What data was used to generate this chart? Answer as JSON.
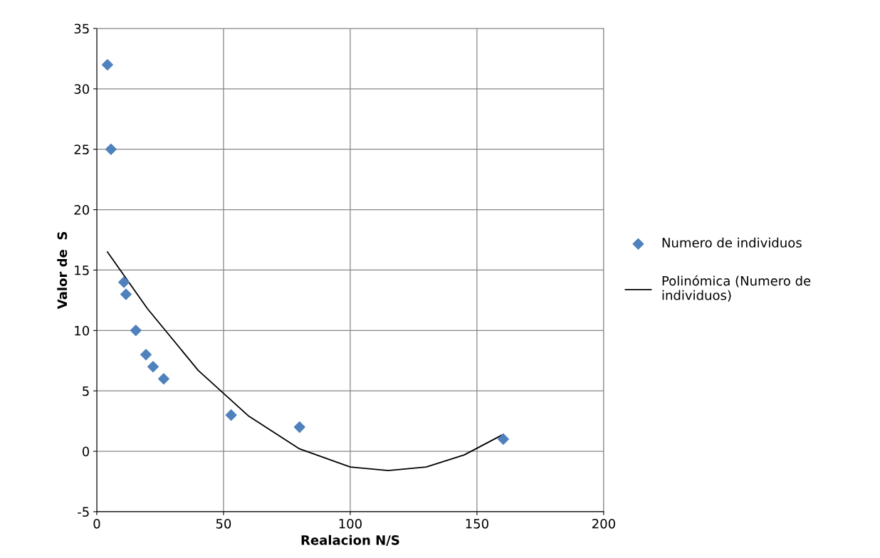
{
  "chart_data": {
    "type": "scatter",
    "xlabel": "Realacion N/S",
    "ylabel": "Valor de  S",
    "xlim": [
      0,
      200
    ],
    "xticks": [
      0,
      50,
      100,
      150,
      200
    ],
    "ylim": [
      -5,
      35
    ],
    "yticks": [
      -5,
      0,
      5,
      10,
      15,
      20,
      25,
      30,
      35
    ],
    "grid": true,
    "legend": "right",
    "series": [
      {
        "name": "Numero de individuos",
        "marker": "diamond",
        "color": "#4f81bd",
        "x": [
          4.2,
          5.6,
          10.7,
          11.5,
          15.4,
          19.4,
          22.2,
          26.4,
          53,
          80,
          160.4
        ],
        "values": [
          32,
          25,
          14,
          13,
          10,
          8,
          7,
          6,
          3,
          2,
          1
        ]
      },
      {
        "name": "Polinómica (Numero de individuos)",
        "type": "line",
        "marker": "none",
        "line_style": "solid",
        "color": "#000000",
        "x": [
          4.2,
          20,
          40,
          60,
          80,
          100,
          115,
          130,
          145,
          160.4
        ],
        "values": [
          16.5,
          11.8,
          6.7,
          2.9,
          0.2,
          -1.3,
          -1.6,
          -1.3,
          -0.3,
          1.4
        ]
      }
    ]
  }
}
